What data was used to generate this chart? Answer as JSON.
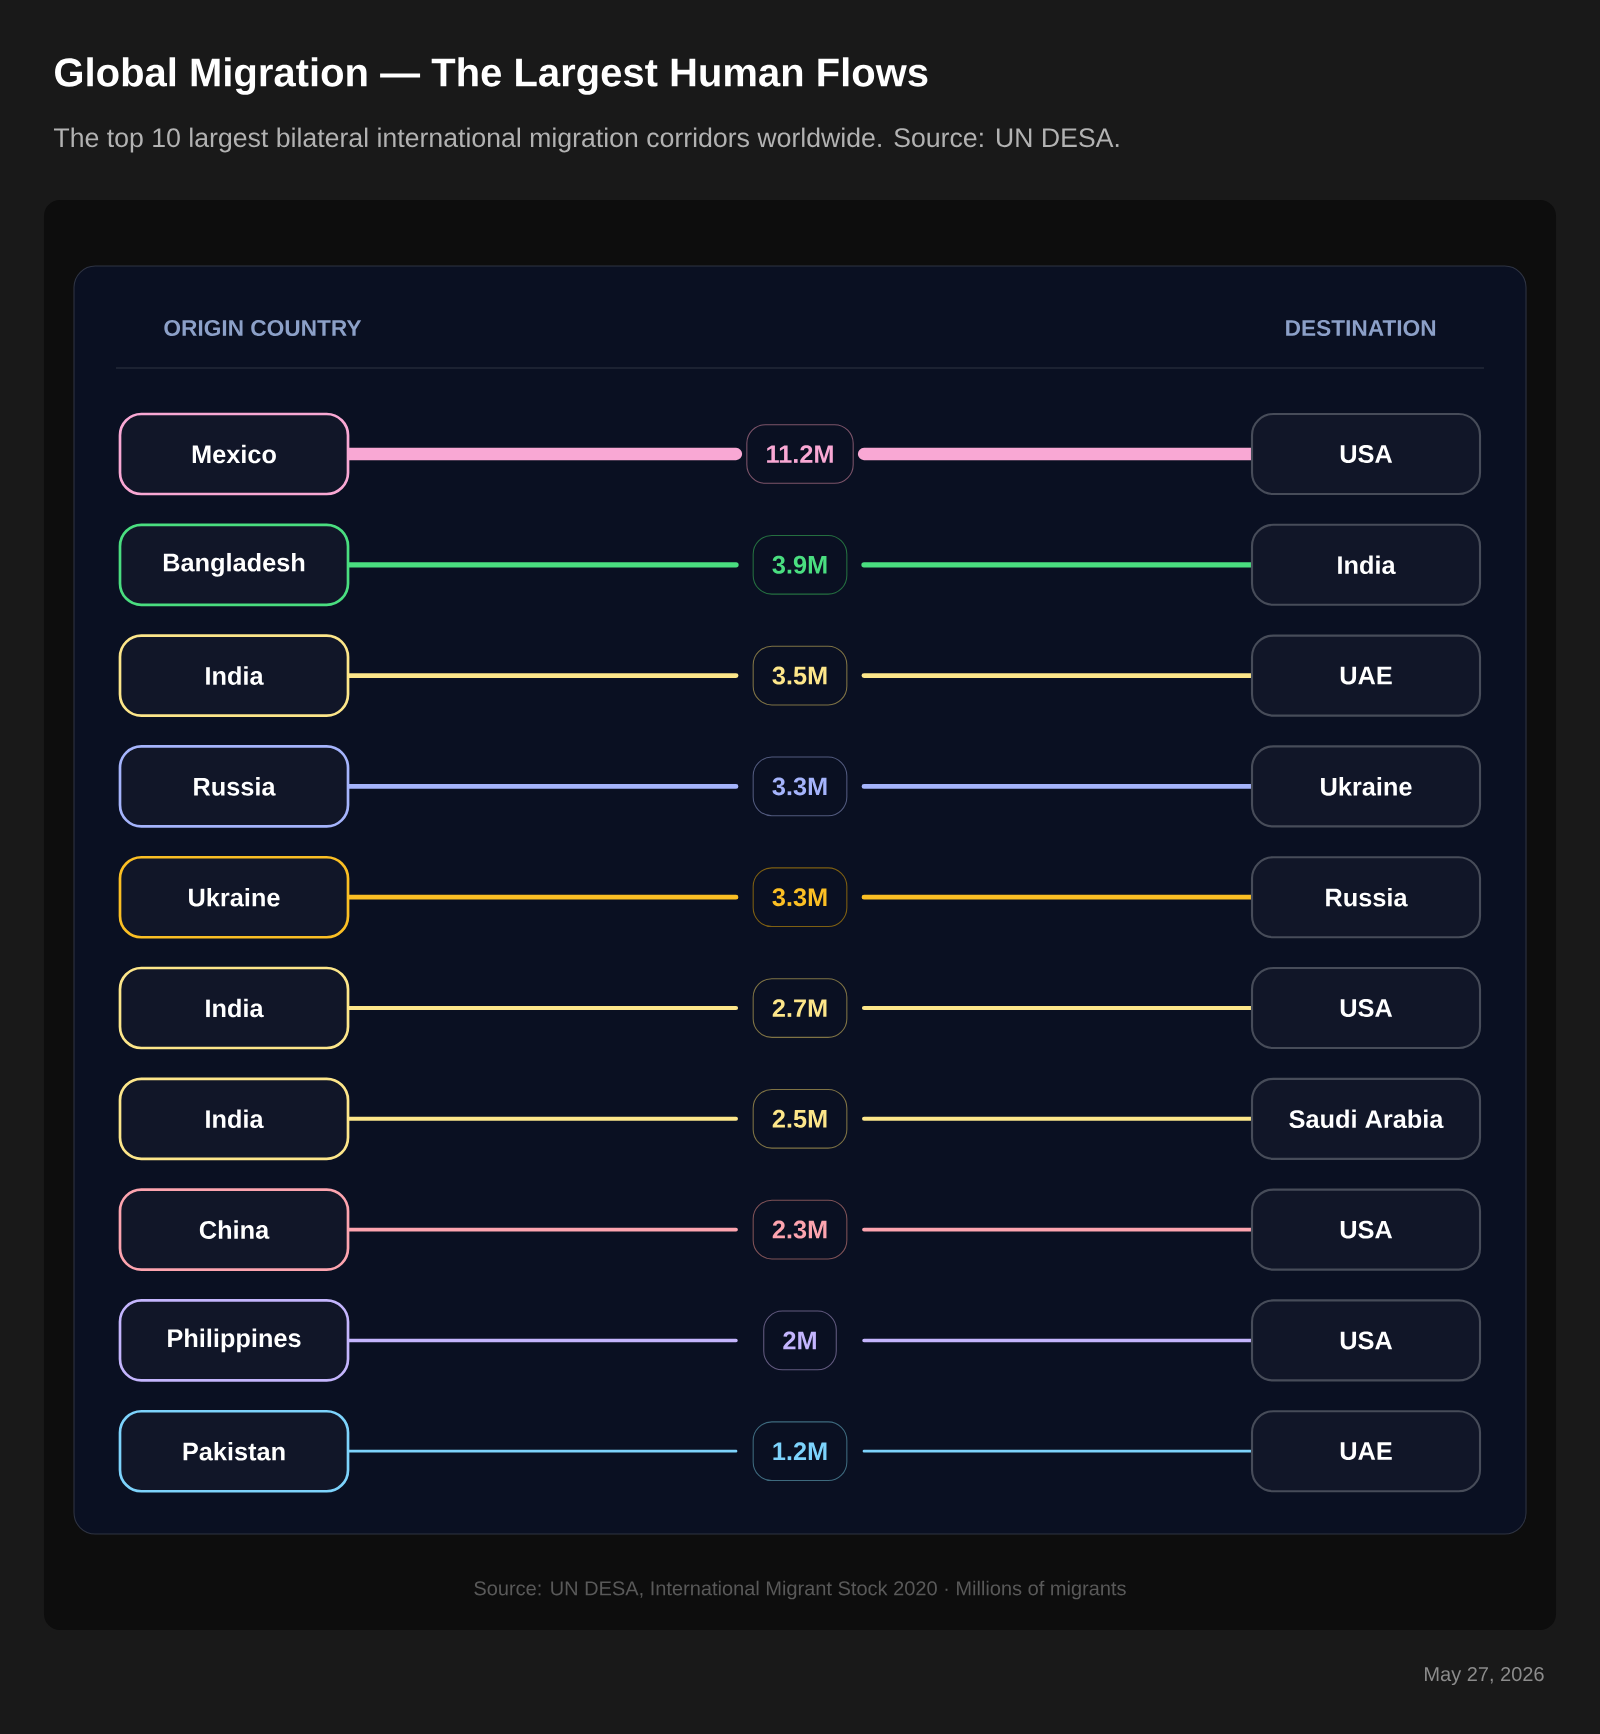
{
  "chart_data": {
    "type": "other",
    "title": "Global Migration — The Largest Human Flows",
    "subtitle": "The top 10 largest bilateral international migration corridors worldwide. Source: UN DESA.",
    "xlabel": "ORIGIN COUNTRY",
    "x2label": "DESTINATION",
    "categories": [
      "Mexico",
      "Bangladesh",
      "India",
      "Russia",
      "Ukraine",
      "India",
      "India",
      "China",
      "Philippines",
      "Pakistan"
    ],
    "y2_categories": [
      "USA",
      "India",
      "UAE",
      "Ukraine",
      "Russia",
      "USA",
      "Saudi Arabia",
      "USA",
      "USA",
      "UAE"
    ],
    "values": [
      11.2,
      3.9,
      3.5,
      3.3,
      3.3,
      2.7,
      2.5,
      2.3,
      2,
      1.2
    ],
    "value_labels": [
      "11.2M",
      "3.9M",
      "3.5M",
      "3.3M",
      "3.3M",
      "2.7M",
      "2.5M",
      "2.3M",
      "2M",
      "1.2M"
    ],
    "colors": [
      "#f9a8d4",
      "#4ade80",
      "#fde68a",
      "#a5b4fc",
      "#fbbf24",
      "#fde68a",
      "#fde68a",
      "#fda4af",
      "#c4b5fd",
      "#7dd3fc"
    ],
    "annotations": [
      "Source: UN DESA, International Migrant Stock 2020 · Millions of migrants",
      "May 27, 2026"
    ]
  }
}
